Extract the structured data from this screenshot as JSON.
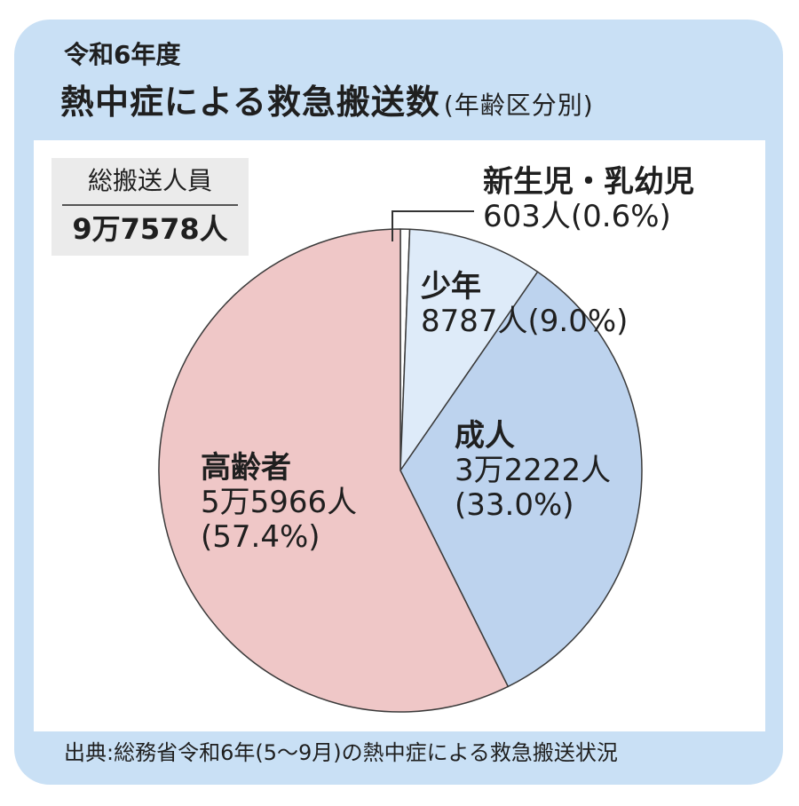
{
  "header": {
    "year_label": "令和6年度",
    "title": "熱中症による救急搬送数",
    "subtitle": "(年齢区分別)"
  },
  "total": {
    "label": "総搬送人員",
    "value": "9万7578人"
  },
  "chart_data": {
    "type": "pie",
    "title": "熱中症による救急搬送数(年齢区分別)",
    "categories": [
      "新生児・乳幼児",
      "少年",
      "成人",
      "高齢者"
    ],
    "values": [
      603,
      8787,
      32222,
      55966
    ],
    "percents": [
      0.6,
      9.0,
      33.0,
      57.4
    ],
    "value_labels": [
      "603人",
      "8787人",
      "3万2222人",
      "5万5966人"
    ],
    "percent_labels": [
      "(0.6%)",
      "(9.0%)",
      "(33.0%)",
      "(57.4%)"
    ],
    "colors": [
      "#ffffff",
      "#deebf9",
      "#bdd3ee",
      "#efc7c7"
    ],
    "start_angle": "12 o'clock, clockwise"
  },
  "labels": {
    "newborn": {
      "name": "新生児・乳幼児",
      "value": "603人(0.6%)"
    },
    "youth": {
      "name": "少年",
      "value": "8787人(9.0%)"
    },
    "adult": {
      "name": "成人",
      "value": "3万2222人",
      "percent": "(33.0%)"
    },
    "elderly": {
      "name": "高齢者",
      "value": "5万5966人",
      "percent": "(57.4%)"
    }
  },
  "source": "出典:総務省令和6年(5〜9月)の熱中症による救急搬送状況"
}
